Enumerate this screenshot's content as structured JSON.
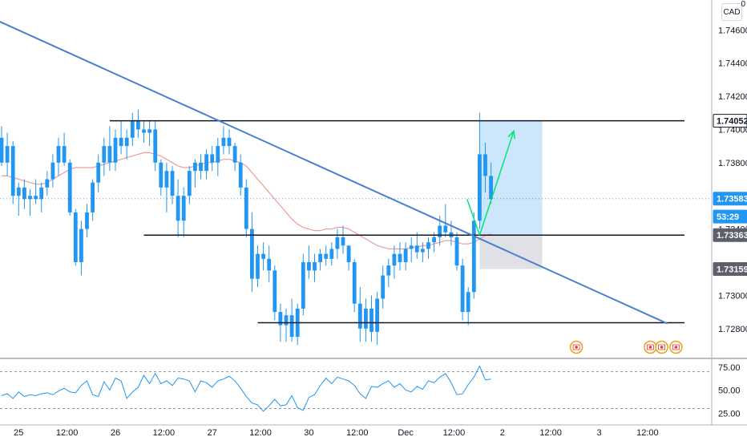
{
  "currency_badge": "CAD",
  "corner_label": "0",
  "chart_data": {
    "type": "candlestick",
    "price_axis": {
      "ticks": [
        1.746,
        1.744,
        1.742,
        1.74,
        1.738,
        1.734,
        1.73,
        1.728
      ],
      "tick_labels": [
        "1.74600",
        "1.74400",
        "1.74200",
        "1.74000",
        "1.73800",
        "1.73400",
        "1.73000",
        "1.72800"
      ],
      "ylim": [
        1.7262,
        1.7478
      ]
    },
    "time_axis": {
      "labels": [
        "25",
        "12:00",
        "26",
        "12:00",
        "27",
        "12:00",
        "30",
        "12:00",
        "Dec",
        "12:00",
        "2",
        "12:00",
        "3",
        "12:00"
      ],
      "label_index": [
        3,
        11.5,
        20,
        28.5,
        37,
        45.5,
        54,
        62.5,
        71,
        79.5,
        88,
        96.5,
        105,
        113.5
      ]
    },
    "price_labels": [
      {
        "text": "1.74052",
        "value": 1.74052,
        "style": "line"
      },
      {
        "text": "1.73583",
        "value": 1.73583,
        "style": "current"
      },
      {
        "text": "53:29",
        "value": 1.73475,
        "style": "countdown"
      },
      {
        "text": "1.73363",
        "value": 1.73363,
        "style": "dark"
      },
      {
        "text": "1.73159",
        "value": 1.73159,
        "style": "dark"
      }
    ],
    "horizontal_lines": [
      {
        "value": 1.74052,
        "from_index": 19,
        "to_index": 120
      },
      {
        "value": 1.73363,
        "from_index": 25,
        "to_index": 120
      },
      {
        "value": 1.72835,
        "from_index": 45,
        "to_index": 120
      }
    ],
    "trendline": {
      "from": [
        -1,
        1.7466
      ],
      "to": [
        117,
        1.7283
      ]
    },
    "position_box": {
      "from_index": 84,
      "to_index": 95,
      "entry": 1.73363,
      "target": 1.74052,
      "stop": 1.73159
    },
    "arrow": [
      [
        84,
        1.73363
      ],
      [
        81.8,
        1.7358
      ],
      [
        85.5,
        1.7335
      ],
      [
        90,
        1.7399
      ]
    ],
    "candles": [
      [
        1.7395,
        1.7402,
        1.7378,
        1.738
      ],
      [
        1.738,
        1.7398,
        1.7372,
        1.739
      ],
      [
        1.739,
        1.7393,
        1.7355,
        1.736
      ],
      [
        1.736,
        1.7368,
        1.7348,
        1.7365
      ],
      [
        1.7365,
        1.737,
        1.7352,
        1.7358
      ],
      [
        1.7358,
        1.7364,
        1.7348,
        1.736
      ],
      [
        1.736,
        1.737,
        1.7355,
        1.7358
      ],
      [
        1.7358,
        1.7368,
        1.735,
        1.7365
      ],
      [
        1.7365,
        1.7375,
        1.736,
        1.737
      ],
      [
        1.737,
        1.7385,
        1.7365,
        1.738
      ],
      [
        1.738,
        1.7395,
        1.7372,
        1.739
      ],
      [
        1.739,
        1.7398,
        1.7378,
        1.738
      ],
      [
        1.738,
        1.7382,
        1.7348,
        1.735
      ],
      [
        1.735,
        1.7352,
        1.7318,
        1.732
      ],
      [
        1.732,
        1.7345,
        1.7312,
        1.734
      ],
      [
        1.734,
        1.7355,
        1.7335,
        1.735
      ],
      [
        1.735,
        1.737,
        1.7345,
        1.7368
      ],
      [
        1.7368,
        1.7385,
        1.7362,
        1.738
      ],
      [
        1.738,
        1.7395,
        1.7372,
        1.739
      ],
      [
        1.739,
        1.7402,
        1.7375,
        1.738
      ],
      [
        1.738,
        1.74,
        1.7375,
        1.7395
      ],
      [
        1.7395,
        1.7405,
        1.7385,
        1.739
      ],
      [
        1.739,
        1.74,
        1.7382,
        1.7395
      ],
      [
        1.7395,
        1.741,
        1.739,
        1.7405
      ],
      [
        1.7405,
        1.7412,
        1.7395,
        1.74
      ],
      [
        1.74,
        1.7405,
        1.7392,
        1.7398
      ],
      [
        1.7398,
        1.7405,
        1.739,
        1.74
      ],
      [
        1.74,
        1.7405,
        1.7375,
        1.738
      ],
      [
        1.738,
        1.7382,
        1.736,
        1.7365
      ],
      [
        1.7365,
        1.738,
        1.735,
        1.7375
      ],
      [
        1.7375,
        1.7378,
        1.7355,
        1.736
      ],
      [
        1.736,
        1.737,
        1.7335,
        1.7345
      ],
      [
        1.7345,
        1.7365,
        1.7335,
        1.736
      ],
      [
        1.736,
        1.7378,
        1.7355,
        1.7375
      ],
      [
        1.7375,
        1.7382,
        1.7365,
        1.738
      ],
      [
        1.738,
        1.7385,
        1.737,
        1.7375
      ],
      [
        1.7375,
        1.7388,
        1.737,
        1.7385
      ],
      [
        1.7385,
        1.739,
        1.7375,
        1.738
      ],
      [
        1.738,
        1.7395,
        1.7372,
        1.739
      ],
      [
        1.739,
        1.7402,
        1.7385,
        1.7395
      ],
      [
        1.7395,
        1.74,
        1.7385,
        1.739
      ],
      [
        1.739,
        1.7392,
        1.7375,
        1.738
      ],
      [
        1.738,
        1.7385,
        1.736,
        1.7365
      ],
      [
        1.7365,
        1.737,
        1.7335,
        1.734
      ],
      [
        1.734,
        1.735,
        1.7302,
        1.731
      ],
      [
        1.731,
        1.733,
        1.7305,
        1.7325
      ],
      [
        1.7325,
        1.7332,
        1.7315,
        1.7322
      ],
      [
        1.7322,
        1.733,
        1.7308,
        1.7315
      ],
      [
        1.7315,
        1.7318,
        1.7285,
        1.729
      ],
      [
        1.729,
        1.7295,
        1.7272,
        1.7282
      ],
      [
        1.7282,
        1.7292,
        1.7272,
        1.7288
      ],
      [
        1.7288,
        1.7298,
        1.7272,
        1.7275
      ],
      [
        1.7275,
        1.7295,
        1.727,
        1.7292
      ],
      [
        1.7292,
        1.7325,
        1.7288,
        1.732
      ],
      [
        1.732,
        1.733,
        1.731,
        1.7315
      ],
      [
        1.7315,
        1.7325,
        1.7308,
        1.732
      ],
      [
        1.732,
        1.7328,
        1.7315,
        1.7325
      ],
      [
        1.7325,
        1.733,
        1.7318,
        1.7322
      ],
      [
        1.7322,
        1.7332,
        1.7318,
        1.7328
      ],
      [
        1.7328,
        1.734,
        1.7322,
        1.7335
      ],
      [
        1.7335,
        1.7342,
        1.7325,
        1.733
      ],
      [
        1.733,
        1.733,
        1.7315,
        1.732
      ],
      [
        1.732,
        1.7322,
        1.729,
        1.7295
      ],
      [
        1.7295,
        1.7305,
        1.7272,
        1.728
      ],
      [
        1.728,
        1.7298,
        1.7272,
        1.7292
      ],
      [
        1.7292,
        1.73,
        1.7272,
        1.7278
      ],
      [
        1.7278,
        1.7302,
        1.727,
        1.7298
      ],
      [
        1.7298,
        1.7318,
        1.7292,
        1.7312
      ],
      [
        1.7312,
        1.7322,
        1.7305,
        1.7318
      ],
      [
        1.7318,
        1.733,
        1.731,
        1.7325
      ],
      [
        1.7325,
        1.7332,
        1.7315,
        1.732
      ],
      [
        1.732,
        1.7332,
        1.7315,
        1.7328
      ],
      [
        1.7328,
        1.7335,
        1.732,
        1.733
      ],
      [
        1.733,
        1.7338,
        1.7322,
        1.7326
      ],
      [
        1.7326,
        1.7332,
        1.732,
        1.7328
      ],
      [
        1.7328,
        1.7335,
        1.7322,
        1.7332
      ],
      [
        1.7332,
        1.7338,
        1.7326,
        1.7335
      ],
      [
        1.7335,
        1.7348,
        1.733,
        1.7342
      ],
      [
        1.7342,
        1.7355,
        1.7335,
        1.7338
      ],
      [
        1.7338,
        1.7345,
        1.733,
        1.7335
      ],
      [
        1.7335,
        1.7338,
        1.7315,
        1.7318
      ],
      [
        1.7318,
        1.7322,
        1.7285,
        1.729
      ],
      [
        1.729,
        1.7305,
        1.7282,
        1.7302
      ],
      [
        1.7302,
        1.735,
        1.7298,
        1.7345
      ],
      [
        1.7345,
        1.741,
        1.734,
        1.7385
      ],
      [
        1.7385,
        1.7392,
        1.7362,
        1.7372
      ],
      [
        1.7372,
        1.738,
        1.7355,
        1.7358
      ]
    ],
    "ma_values": [
      1.7372,
      1.7372,
      1.7371,
      1.737,
      1.7369,
      1.7368,
      1.7367,
      1.7367,
      1.7368,
      1.737,
      1.7372,
      1.7374,
      1.7376,
      1.7377,
      1.7377,
      1.7377,
      1.7377,
      1.7378,
      1.7379,
      1.738,
      1.7381,
      1.7382,
      1.7383,
      1.7384,
      1.7385,
      1.7386,
      1.7386,
      1.7385,
      1.7384,
      1.7382,
      1.738,
      1.7378,
      1.7377,
      1.7377,
      1.7378,
      1.7379,
      1.738,
      1.738,
      1.7381,
      1.7382,
      1.7382,
      1.7381,
      1.738,
      1.7378,
      1.7374,
      1.737,
      1.7366,
      1.7362,
      1.7358,
      1.7354,
      1.735,
      1.7346,
      1.7343,
      1.7341,
      1.734,
      1.7339,
      1.7339,
      1.734,
      1.734,
      1.7341,
      1.7341,
      1.734,
      1.7338,
      1.7336,
      1.7334,
      1.7332,
      1.733,
      1.7329,
      1.7328,
      1.7328,
      1.7328,
      1.7328,
      1.7329,
      1.7329,
      1.733,
      1.733,
      1.7331,
      1.7332,
      1.7333,
      1.7333,
      1.7332,
      1.7331,
      1.7331,
      1.7332,
      1.7334,
      1.7336,
      1.7337
    ],
    "indicator": {
      "ticks": [
        75,
        50,
        25
      ],
      "tick_labels": [
        "75.00",
        "50.00",
        "25.00"
      ],
      "dashed_levels": [
        70,
        30
      ],
      "values": [
        44,
        46,
        41,
        48,
        43,
        45,
        44,
        46,
        47,
        45,
        49,
        52,
        48,
        47,
        55,
        60,
        45,
        43,
        59,
        50,
        63,
        60,
        41,
        48,
        53,
        66,
        57,
        68,
        57,
        60,
        55,
        63,
        62,
        60,
        48,
        60,
        58,
        53,
        60,
        62,
        65,
        60,
        52,
        43,
        36,
        34,
        27,
        33,
        40,
        33,
        34,
        44,
        31,
        28,
        42,
        45,
        55,
        63,
        57,
        64,
        62,
        60,
        55,
        46,
        41,
        54,
        53,
        57,
        60,
        53,
        57,
        50,
        48,
        54,
        51,
        60,
        58,
        64,
        68,
        58,
        45,
        46,
        56,
        64,
        76,
        61,
        62
      ]
    }
  }
}
